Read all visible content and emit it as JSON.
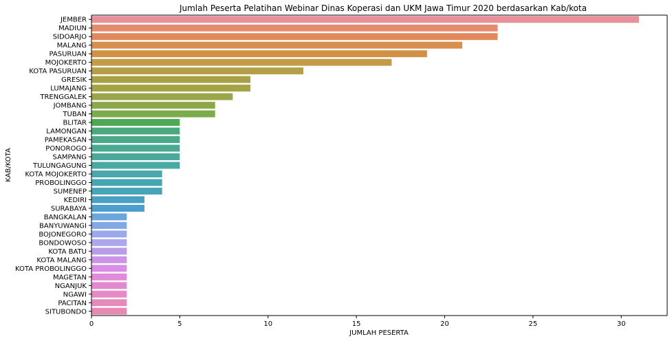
{
  "chart_data": {
    "type": "bar",
    "orientation": "horizontal",
    "title": "Jumlah Peserta Pelatihan Webinar Dinas Koperasi dan UKM Jawa Timur 2020 berdasarkan Kab/kota",
    "xlabel": "JUMLAH PESERTA",
    "ylabel": "KAB/KOTA",
    "xlim": [
      0,
      32.6
    ],
    "xticks": [
      0,
      5,
      10,
      15,
      20,
      25,
      30
    ],
    "grid": false,
    "categories": [
      "JEMBER",
      "MADIUN",
      "SIDOARJO",
      "MALANG",
      "PASURUAN",
      "MOJOKERTO",
      "KOTA PASURUAN",
      "GRESIK",
      "LUMAJANG",
      "TRENGGALEK",
      "JOMBANG",
      "TUBAN",
      "BLITAR",
      "LAMONGAN",
      "PAMEKASAN",
      "PONOROGO",
      "SAMPANG",
      "TULUNGAGUNG",
      "KOTA MOJOKERTO",
      "PROBOLINGGO",
      "SUMENEP",
      "KEDIRI",
      "SURABAYA",
      "BANGKALAN",
      "BANYUWANGI",
      "BOJONEGORO",
      "BONDOWOSO",
      "KOTA BATU",
      "KOTA MALANG",
      "KOTA PROBOLINGGO",
      "MAGETAN",
      "NGANJUK",
      "NGAWI",
      "PACITAN",
      "SITUBONDO"
    ],
    "values": [
      31,
      23,
      23,
      21,
      19,
      17,
      12,
      9,
      9,
      8,
      7,
      7,
      5,
      5,
      5,
      5,
      5,
      5,
      4,
      4,
      4,
      3,
      3,
      2,
      2,
      2,
      2,
      2,
      2,
      2,
      2,
      2,
      2,
      2,
      2
    ],
    "colors": [
      "#e8919b",
      "#e38d6f",
      "#e3885b",
      "#db8f4e",
      "#d19145",
      "#c49c48",
      "#b49e48",
      "#a9a145",
      "#a4a447",
      "#9ba64b",
      "#8da84b",
      "#7bab4b",
      "#4da952",
      "#4ca97c",
      "#4aa988",
      "#4aa992",
      "#4aa99a",
      "#4aa9a3",
      "#4aa8ae",
      "#46a6b3",
      "#47a3b7",
      "#4aa0c2",
      "#4c9ece",
      "#6aa6dc",
      "#82a9e6",
      "#9aa9ea",
      "#aea6ea",
      "#b89ce8",
      "#cb94e6",
      "#d98ee4",
      "#e08ad9",
      "#e38ace",
      "#e58ac4",
      "#e68abd",
      "#e68ab2"
    ]
  }
}
